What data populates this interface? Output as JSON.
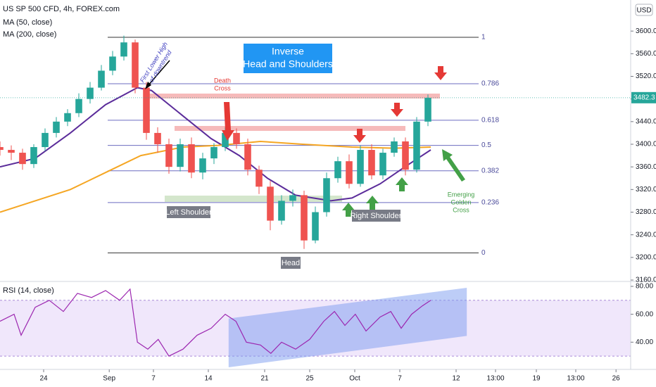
{
  "chart_data": {
    "type": "candlestick",
    "title": "US SP 500 CFD, 4h, FOREX.com",
    "currency": "USD",
    "xlim": [
      0,
      112
    ],
    "xticks": [
      {
        "value": 7.75,
        "label": "24"
      },
      {
        "value": 19.4,
        "label": "Sep"
      },
      {
        "value": 27.25,
        "label": "7"
      },
      {
        "value": 37,
        "label": "14"
      },
      {
        "value": 47,
        "label": "21"
      },
      {
        "value": 55,
        "label": "25"
      },
      {
        "value": 63,
        "label": "Oct"
      },
      {
        "value": 71,
        "label": "7"
      },
      {
        "value": 81,
        "label": "12"
      },
      {
        "value": 88,
        "label": "13:00"
      },
      {
        "value": 95.25,
        "label": "19"
      },
      {
        "value": 102.25,
        "label": "13:00"
      },
      {
        "value": 109.4,
        "label": "26"
      }
    ],
    "ylim": [
      3160,
      3640
    ],
    "yticks": [
      {
        "value": 3160,
        "label": "3160.0"
      },
      {
        "value": 3200,
        "label": "3200.0"
      },
      {
        "value": 3240,
        "label": "3240.0"
      },
      {
        "value": 3280,
        "label": "3280.0"
      },
      {
        "value": 3320,
        "label": "3320.0"
      },
      {
        "value": 3360,
        "label": "3360.0"
      },
      {
        "value": 3400,
        "label": "3400.0"
      },
      {
        "value": 3440,
        "label": "3440.0"
      },
      {
        "value": 3480,
        "label": "3480.0"
      },
      {
        "value": 3520,
        "label": "3520.0"
      },
      {
        "value": 3560,
        "label": "3560.0"
      },
      {
        "value": 3600,
        "label": "3600.0"
      }
    ],
    "grid": false,
    "up_color": "#26a69a",
    "down_color": "#ef5350",
    "x": [
      0,
      2,
      4,
      6,
      8,
      10,
      12,
      14,
      16,
      18,
      20,
      22,
      24,
      26,
      28,
      30,
      32,
      34,
      36,
      38,
      40,
      42,
      44,
      46,
      48,
      50,
      52,
      54,
      56,
      58,
      60,
      62,
      64,
      66,
      68,
      70,
      72,
      74,
      76
    ],
    "open": [
      3395,
      3390,
      3385,
      3365,
      3395,
      3420,
      3440,
      3455,
      3480,
      3500,
      3530,
      3555,
      3580,
      3500,
      3420,
      3400,
      3360,
      3400,
      3350,
      3375,
      3395,
      3420,
      3400,
      3355,
      3325,
      3265,
      3300,
      3310,
      3230,
      3280,
      3340,
      3370,
      3330,
      3390,
      3345,
      3385,
      3405,
      3355,
      3440
    ],
    "high": [
      3405,
      3398,
      3392,
      3400,
      3428,
      3448,
      3462,
      3490,
      3510,
      3540,
      3565,
      3592,
      3585,
      3510,
      3430,
      3410,
      3410,
      3412,
      3385,
      3402,
      3430,
      3428,
      3410,
      3362,
      3335,
      3310,
      3320,
      3318,
      3290,
      3350,
      3378,
      3382,
      3398,
      3400,
      3392,
      3412,
      3412,
      3448,
      3488
    ],
    "low": [
      3380,
      3372,
      3355,
      3358,
      3388,
      3412,
      3432,
      3448,
      3472,
      3495,
      3522,
      3548,
      3490,
      3408,
      3385,
      3348,
      3352,
      3340,
      3338,
      3365,
      3388,
      3392,
      3345,
      3312,
      3248,
      3258,
      3290,
      3215,
      3225,
      3272,
      3332,
      3322,
      3325,
      3338,
      3338,
      3378,
      3345,
      3350,
      3432
    ],
    "close": [
      3390,
      3385,
      3365,
      3395,
      3420,
      3440,
      3455,
      3480,
      3500,
      3530,
      3555,
      3580,
      3500,
      3420,
      3400,
      3360,
      3400,
      3350,
      3375,
      3395,
      3420,
      3400,
      3355,
      3325,
      3265,
      3300,
      3310,
      3230,
      3280,
      3340,
      3370,
      3330,
      3390,
      3345,
      3385,
      3405,
      3355,
      3440,
      3482
    ],
    "last_price": 3482.3,
    "moving_averages": [
      {
        "name": "MA (50, close)",
        "color": "#5b2c9a",
        "x": [
          0,
          6.25,
          12.5,
          18.75,
          24.4,
          26.9,
          32.5,
          37.5,
          42.5,
          47.5,
          52.5,
          58.75,
          62.5,
          67.5,
          71.9,
          76.5
        ],
        "values": [
          3360,
          3375,
          3420,
          3470,
          3500,
          3495,
          3450,
          3410,
          3380,
          3340,
          3310,
          3300,
          3305,
          3330,
          3360,
          3390
        ]
      },
      {
        "name": "MA (200, close)",
        "color": "#f5a623",
        "x": [
          0,
          12.5,
          18.75,
          25,
          32.5,
          38.75,
          46.25,
          53.75,
          62.5,
          70,
          76.5
        ],
        "values": [
          3280,
          3320,
          3350,
          3380,
          3395,
          3398,
          3405,
          3400,
          3395,
          3393,
          3395
        ]
      }
    ],
    "fib_levels": [
      {
        "label": "1",
        "value": 3589
      },
      {
        "label": "0.786",
        "value": 3507
      },
      {
        "label": "0.618",
        "value": 3442.5
      },
      {
        "label": "0.5",
        "value": 3398
      },
      {
        "label": "0.382",
        "value": 3353
      },
      {
        "label": "0.236",
        "value": 3297
      },
      {
        "label": "0",
        "value": 3208
      }
    ],
    "annotations": {
      "pattern": [
        "Inverse",
        "Head and Shoulders"
      ],
      "death_cross": [
        "Death",
        "Cross"
      ],
      "lower_high": [
        "First Lower High",
        "of downtrend"
      ],
      "left_shoulder": "Left Shoulder",
      "head": "Head",
      "right_shoulder": "Right Shoulder",
      "golden_cross": [
        "Emerging",
        "Golden",
        "Cross"
      ]
    },
    "rsi": {
      "name": "RSI (14, close)",
      "color": "#9c27b0",
      "ylim": [
        22,
        82
      ],
      "yticks": [
        {
          "value": 40,
          "label": "40.00"
        },
        {
          "value": 60,
          "label": "60.00"
        },
        {
          "value": 80,
          "label": "80.00"
        }
      ],
      "bands": [
        30,
        70
      ],
      "x": [
        0,
        2.5,
        3.75,
        6.25,
        8.75,
        11.25,
        13.75,
        16.25,
        18.75,
        21.25,
        23.1,
        24.4,
        26.25,
        28.1,
        30,
        32.5,
        35,
        37.5,
        40,
        41.9,
        43.75,
        46.25,
        48.1,
        50,
        52.5,
        55,
        57.5,
        59.4,
        61.25,
        63.1,
        65,
        67.5,
        69.4,
        71.25,
        73.1,
        75,
        76.5
      ],
      "values": [
        55,
        60,
        45,
        65,
        70,
        62,
        75,
        72,
        77,
        70,
        78,
        40,
        35,
        42,
        30,
        35,
        45,
        50,
        60,
        55,
        40,
        38,
        32,
        40,
        35,
        42,
        55,
        62,
        52,
        60,
        48,
        58,
        62,
        50,
        60,
        66,
        70
      ],
      "channel": {
        "x": [
          40.6,
          82.9
        ],
        "lower": [
          22,
          44.5
        ],
        "upper": [
          57,
          79
        ]
      }
    }
  }
}
